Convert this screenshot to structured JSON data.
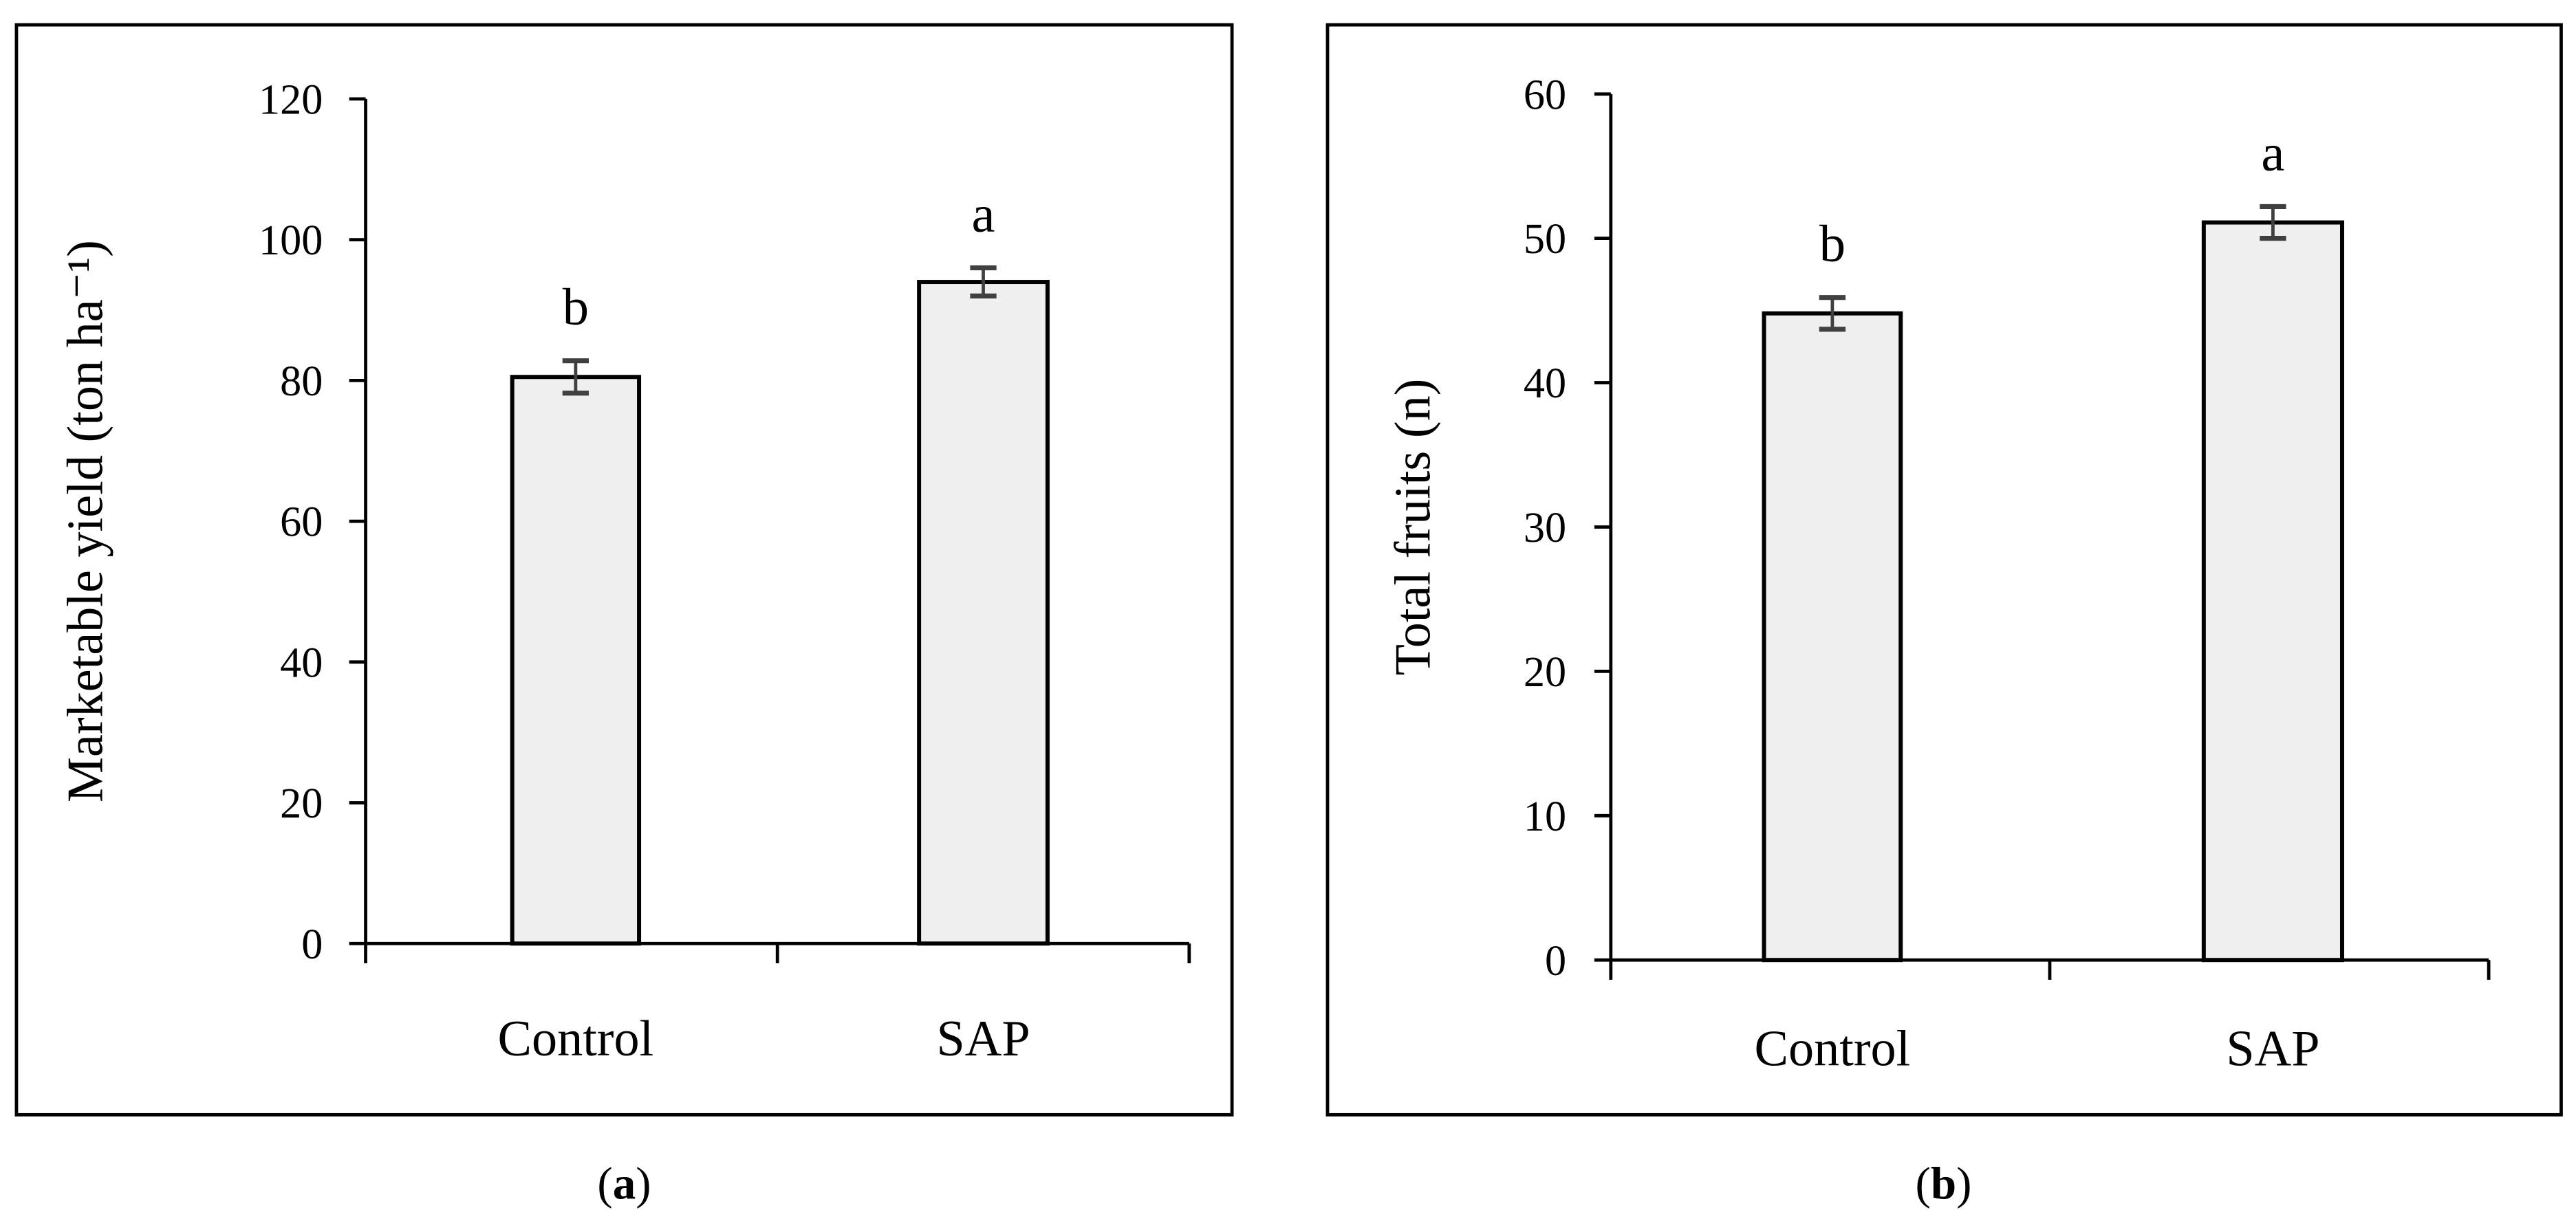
{
  "chart_data": [
    {
      "type": "bar",
      "panel_label": "a",
      "categories": [
        "Control",
        "SAP"
      ],
      "values": [
        80.5,
        94.0
      ],
      "errors": [
        2.3,
        2.0
      ],
      "significance_letters": [
        "b",
        "a"
      ],
      "title": "",
      "xlabel": "",
      "ylabel": "Marketable yield (ton ha⁻¹)",
      "ylim": [
        0,
        120
      ],
      "yticks": [
        0,
        20,
        40,
        60,
        80,
        100,
        120
      ],
      "grid": false,
      "bar_color": "#efefef",
      "bar_edge_color": "#000000",
      "error_color": "#404040"
    },
    {
      "type": "bar",
      "panel_label": "b",
      "categories": [
        "Control",
        "SAP"
      ],
      "values": [
        44.8,
        51.1
      ],
      "errors": [
        1.1,
        1.1
      ],
      "significance_letters": [
        "b",
        "a"
      ],
      "title": "",
      "xlabel": "",
      "ylabel": "Total fruits (n)",
      "ylim": [
        0,
        60
      ],
      "yticks": [
        0,
        10,
        20,
        30,
        40,
        50,
        60
      ],
      "grid": false,
      "bar_color": "#efefef",
      "bar_edge_color": "#000000",
      "error_color": "#404040"
    }
  ]
}
